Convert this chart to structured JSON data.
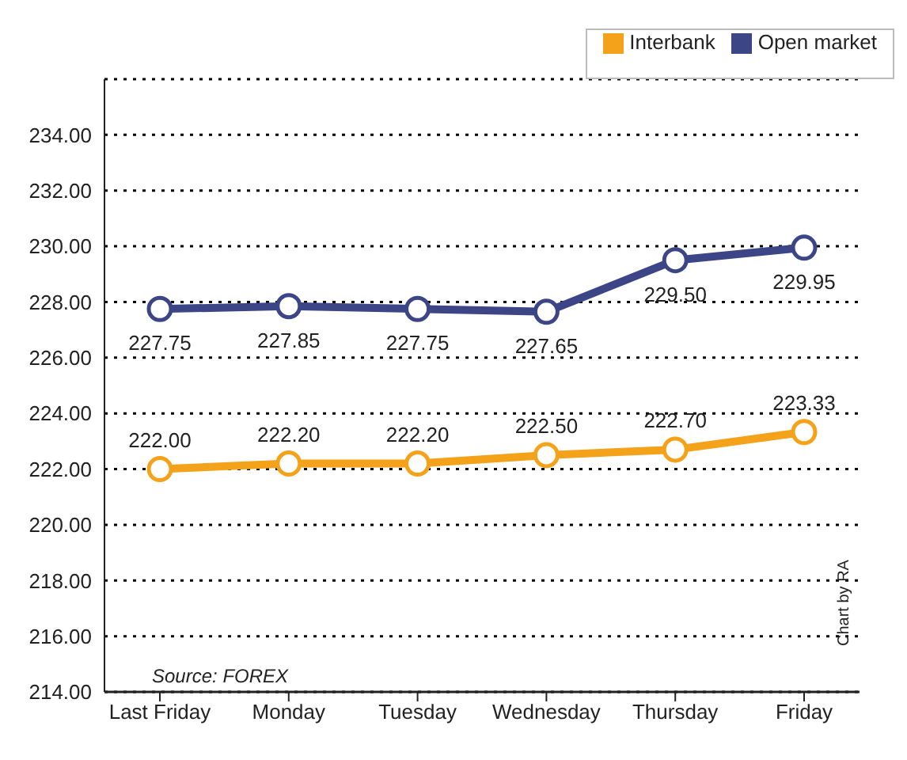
{
  "chart_data": {
    "type": "line",
    "categories": [
      "Last Friday",
      "Monday",
      "Tuesday",
      "Wednesday",
      "Thursday",
      "Friday"
    ],
    "series": [
      {
        "name": "Interbank",
        "color": "#f5a21b",
        "values": [
          222.0,
          222.2,
          222.2,
          222.5,
          222.7,
          223.33
        ],
        "value_labels": [
          "222.00",
          "222.20",
          "222.20",
          "222.50",
          "222.70",
          "223.33"
        ]
      },
      {
        "name": "Open market",
        "color": "#3c4687",
        "values": [
          227.75,
          227.85,
          227.75,
          227.65,
          229.5,
          229.95
        ],
        "value_labels": [
          "227.75",
          "227.85",
          "227.75",
          "227.65",
          "229.50",
          "229.95"
        ]
      }
    ],
    "ylim": [
      214,
      236
    ],
    "yticks": [
      {
        "value": 214,
        "label": "214.00"
      },
      {
        "value": 216,
        "label": "216.00"
      },
      {
        "value": 218,
        "label": "218.00"
      },
      {
        "value": 220,
        "label": "220.00"
      },
      {
        "value": 222,
        "label": "222.00"
      },
      {
        "value": 224,
        "label": "224.00"
      },
      {
        "value": 226,
        "label": "226.00"
      },
      {
        "value": 228,
        "label": "228.00"
      },
      {
        "value": 230,
        "label": "230.00"
      },
      {
        "value": 232,
        "label": "232.00"
      },
      {
        "value": 234,
        "label": "234.00"
      }
    ],
    "grid": "y",
    "legend": "top right",
    "marker": "circle",
    "line_style": "solid",
    "annotations": [
      "Source: FOREX",
      "Chart by RA"
    ]
  }
}
